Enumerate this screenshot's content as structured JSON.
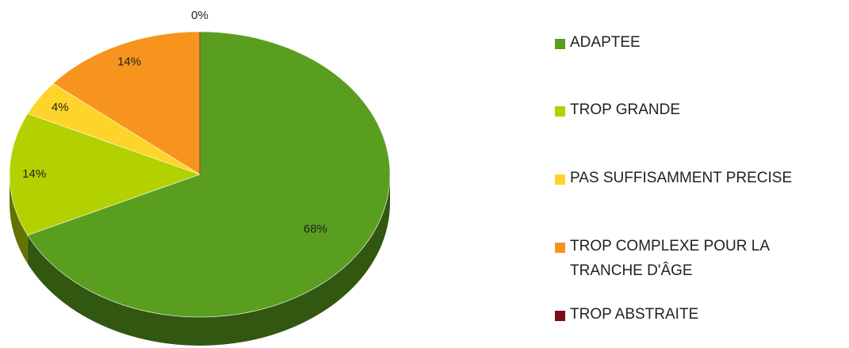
{
  "chart_data": {
    "type": "pie",
    "categories": [
      "ADAPTEE",
      "TROP GRANDE",
      "PAS SUFFISAMMENT PRECISE",
      "TROP COMPLEXE POUR LA TRANCHE D'ÂGE",
      "TROP ABSTRAITE"
    ],
    "values": [
      68,
      14,
      4,
      14,
      0
    ],
    "value_labels": [
      "68%",
      "14%",
      "4%",
      "14%",
      "0%"
    ],
    "colors": [
      "#5a9e1f",
      "#b3d100",
      "#ffd42a",
      "#f7941d",
      "#7a0c1e"
    ],
    "legend": "right"
  }
}
